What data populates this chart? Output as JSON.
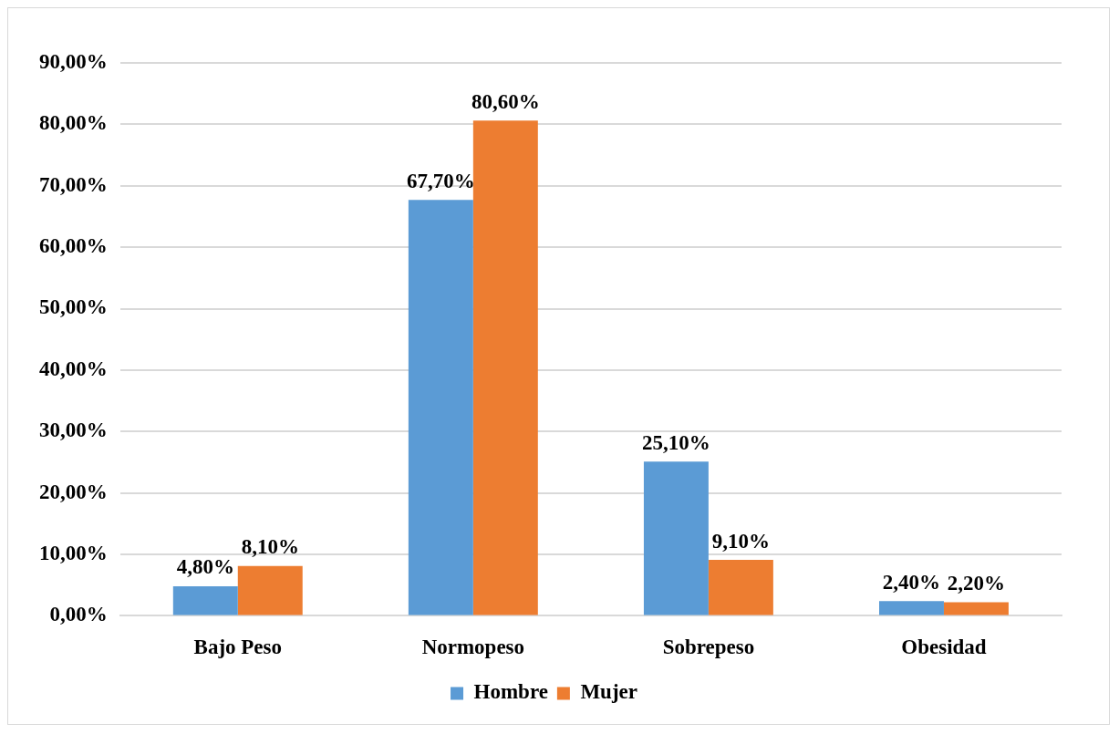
{
  "chart_data": {
    "type": "bar",
    "categories": [
      "Bajo Peso",
      "Normopeso",
      "Sobrepeso",
      "Obesidad"
    ],
    "series": [
      {
        "name": "Hombre",
        "color": "#5b9bd5",
        "values": [
          4.8,
          67.7,
          25.1,
          2.4
        ],
        "value_labels": [
          "4,80%",
          "67,70%",
          "25,10%",
          "2,40%"
        ]
      },
      {
        "name": "Mujer",
        "color": "#ed7d31",
        "values": [
          8.1,
          80.6,
          9.1,
          2.2
        ],
        "value_labels": [
          "8,10%",
          "80,60%",
          "9,10%",
          "2,20%"
        ]
      }
    ],
    "ylim": [
      0,
      90
    ],
    "yticks": [
      {
        "value": 0,
        "label": "0,00%"
      },
      {
        "value": 10,
        "label": "10,00%"
      },
      {
        "value": 20,
        "label": "20,00%"
      },
      {
        "value": 30,
        "label": "30,00%"
      },
      {
        "value": 40,
        "label": "40,00%"
      },
      {
        "value": 50,
        "label": "50,00%"
      },
      {
        "value": 60,
        "label": "60,00%"
      },
      {
        "value": 70,
        "label": "70,00%"
      },
      {
        "value": 80,
        "label": "80,00%"
      },
      {
        "value": 90,
        "label": "90,00%"
      }
    ],
    "grid": "y",
    "legend": "bottom"
  }
}
